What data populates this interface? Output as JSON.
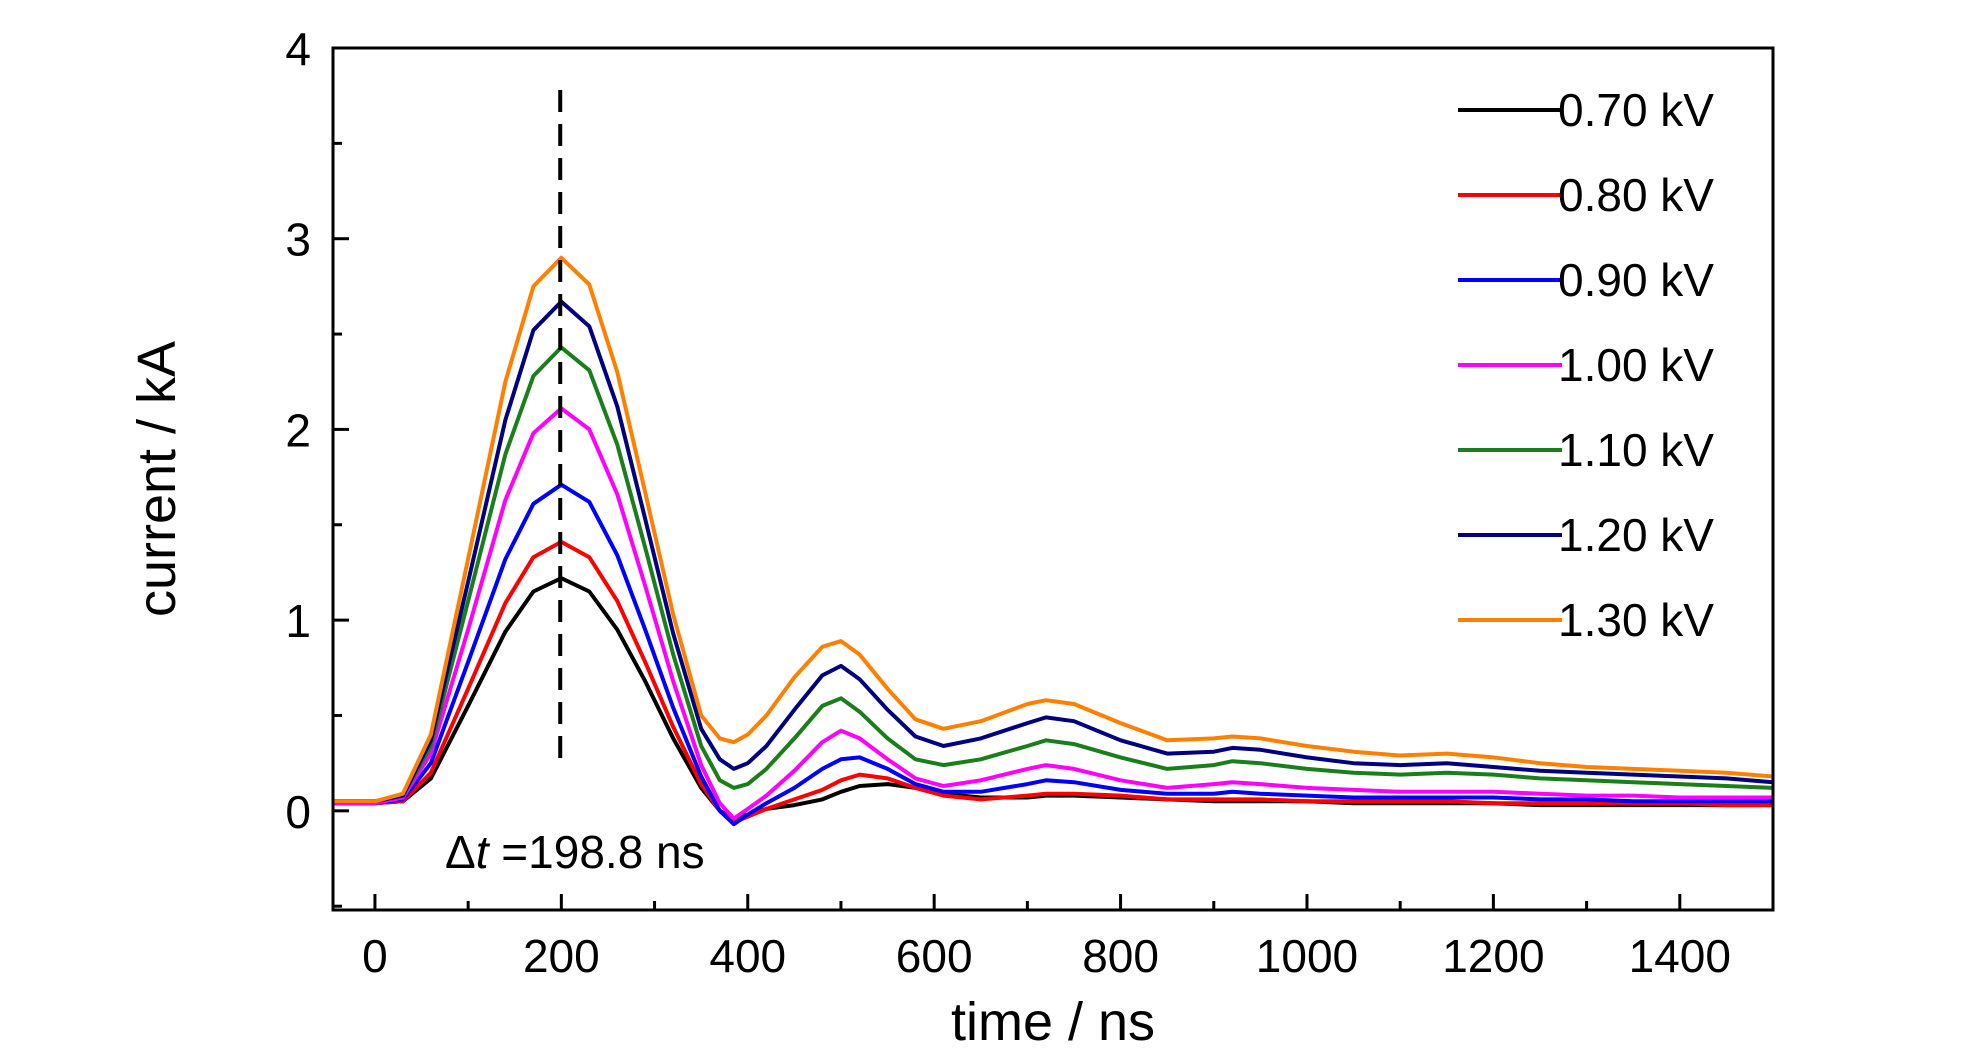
{
  "chart_data": {
    "type": "line",
    "title": "",
    "xlabel": "time / ns",
    "ylabel": "current / kA",
    "xlim": [
      -45,
      1500
    ],
    "ylim": [
      -0.52,
      4.0
    ],
    "x_ticks": [
      0,
      200,
      400,
      600,
      800,
      1000,
      1200,
      1400
    ],
    "x_tick_labels": [
      "0",
      "200",
      "400",
      "600",
      "800",
      "1000",
      "1200",
      "1400"
    ],
    "y_ticks": [
      0,
      1,
      2,
      3,
      4
    ],
    "y_tick_labels": [
      "0",
      "1",
      "2",
      "3",
      "4"
    ],
    "grid": false,
    "legend_position": "top-right",
    "annotation": {
      "delta_symbol": "Δ",
      "variable": "t",
      "value_text": " =198.8 ns",
      "marker_x": 198.8
    },
    "x": [
      -45,
      0,
      30,
      60,
      100,
      140,
      170,
      200,
      230,
      260,
      290,
      320,
      350,
      370,
      385,
      400,
      420,
      450,
      480,
      500,
      520,
      550,
      580,
      610,
      650,
      700,
      720,
      750,
      800,
      850,
      900,
      920,
      950,
      1000,
      1050,
      1100,
      1150,
      1200,
      1250,
      1300,
      1350,
      1400,
      1450,
      1500
    ],
    "series": [
      {
        "name": "0.70 kV",
        "color": "#000000",
        "values": [
          0.04,
          0.04,
          0.05,
          0.17,
          0.55,
          0.94,
          1.15,
          1.22,
          1.15,
          0.95,
          0.68,
          0.38,
          0.12,
          0.0,
          -0.04,
          -0.02,
          0.01,
          0.03,
          0.06,
          0.1,
          0.13,
          0.14,
          0.12,
          0.09,
          0.07,
          0.07,
          0.08,
          0.08,
          0.07,
          0.06,
          0.05,
          0.05,
          0.05,
          0.05,
          0.04,
          0.04,
          0.04,
          0.04,
          0.03,
          0.03,
          0.03,
          0.03,
          0.03,
          0.03
        ]
      },
      {
        "name": "0.80 kV",
        "color": "#ff0000",
        "values": [
          0.04,
          0.04,
          0.05,
          0.2,
          0.64,
          1.09,
          1.33,
          1.41,
          1.33,
          1.1,
          0.78,
          0.44,
          0.14,
          0.0,
          -0.06,
          -0.03,
          0.01,
          0.06,
          0.11,
          0.16,
          0.19,
          0.17,
          0.12,
          0.08,
          0.06,
          0.08,
          0.09,
          0.09,
          0.08,
          0.06,
          0.06,
          0.06,
          0.06,
          0.05,
          0.05,
          0.05,
          0.05,
          0.04,
          0.04,
          0.04,
          0.04,
          0.04,
          0.03,
          0.03
        ]
      },
      {
        "name": "0.90 kV",
        "color": "#0000ff",
        "values": [
          0.04,
          0.04,
          0.06,
          0.25,
          0.78,
          1.32,
          1.61,
          1.71,
          1.62,
          1.34,
          0.95,
          0.54,
          0.18,
          0.0,
          -0.07,
          -0.02,
          0.04,
          0.12,
          0.22,
          0.27,
          0.28,
          0.22,
          0.14,
          0.1,
          0.1,
          0.14,
          0.16,
          0.15,
          0.11,
          0.09,
          0.09,
          0.1,
          0.09,
          0.08,
          0.07,
          0.07,
          0.07,
          0.07,
          0.06,
          0.06,
          0.05,
          0.05,
          0.05,
          0.05
        ]
      },
      {
        "name": "1.00 kV",
        "color": "#ff00ff",
        "values": [
          0.04,
          0.04,
          0.07,
          0.3,
          0.95,
          1.63,
          1.98,
          2.11,
          2.0,
          1.66,
          1.18,
          0.68,
          0.24,
          0.04,
          -0.04,
          0.01,
          0.08,
          0.21,
          0.36,
          0.42,
          0.38,
          0.27,
          0.17,
          0.13,
          0.16,
          0.22,
          0.24,
          0.22,
          0.16,
          0.12,
          0.14,
          0.15,
          0.14,
          0.12,
          0.11,
          0.1,
          0.1,
          0.1,
          0.09,
          0.08,
          0.08,
          0.07,
          0.07,
          0.07
        ]
      },
      {
        "name": "1.10 kV",
        "color": "#1a7f1a",
        "values": [
          0.05,
          0.05,
          0.08,
          0.34,
          1.1,
          1.87,
          2.28,
          2.43,
          2.31,
          1.92,
          1.38,
          0.82,
          0.34,
          0.16,
          0.12,
          0.14,
          0.22,
          0.38,
          0.55,
          0.59,
          0.52,
          0.38,
          0.27,
          0.24,
          0.27,
          0.34,
          0.37,
          0.35,
          0.28,
          0.22,
          0.24,
          0.26,
          0.25,
          0.22,
          0.2,
          0.19,
          0.2,
          0.19,
          0.17,
          0.16,
          0.15,
          0.14,
          0.13,
          0.12
        ]
      },
      {
        "name": "1.20 kV",
        "color": "#000080",
        "values": [
          0.05,
          0.05,
          0.08,
          0.37,
          1.2,
          2.05,
          2.52,
          2.67,
          2.54,
          2.12,
          1.53,
          0.93,
          0.43,
          0.27,
          0.22,
          0.25,
          0.34,
          0.53,
          0.71,
          0.76,
          0.69,
          0.53,
          0.39,
          0.34,
          0.38,
          0.46,
          0.49,
          0.47,
          0.37,
          0.3,
          0.31,
          0.33,
          0.32,
          0.28,
          0.25,
          0.24,
          0.25,
          0.23,
          0.21,
          0.2,
          0.19,
          0.18,
          0.17,
          0.15
        ]
      },
      {
        "name": "1.30 kV",
        "color": "#ff8000",
        "values": [
          0.05,
          0.05,
          0.09,
          0.4,
          1.32,
          2.25,
          2.75,
          2.9,
          2.76,
          2.3,
          1.67,
          1.03,
          0.5,
          0.38,
          0.36,
          0.4,
          0.5,
          0.7,
          0.86,
          0.89,
          0.82,
          0.64,
          0.48,
          0.43,
          0.47,
          0.56,
          0.58,
          0.56,
          0.46,
          0.37,
          0.38,
          0.39,
          0.38,
          0.34,
          0.31,
          0.29,
          0.3,
          0.28,
          0.25,
          0.23,
          0.22,
          0.21,
          0.2,
          0.18
        ]
      }
    ]
  }
}
